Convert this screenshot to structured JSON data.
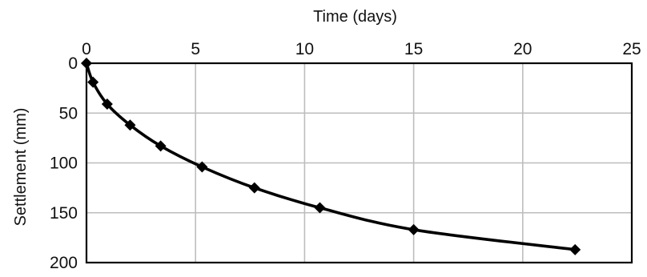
{
  "chart_data": {
    "type": "line",
    "xlabel": "Time (days)",
    "ylabel": "Settlement (mm)",
    "x_axis_position": "top",
    "y_axis_inverted": true,
    "xlim": [
      0,
      25
    ],
    "ylim": [
      0,
      200
    ],
    "x_ticks": [
      0,
      5,
      10,
      15,
      20,
      25
    ],
    "y_ticks": [
      0,
      50,
      100,
      150,
      200
    ],
    "x_tick_labels": [
      "0",
      "5",
      "10",
      "15",
      "20",
      "25"
    ],
    "y_tick_labels": [
      "0",
      "50",
      "100",
      "150",
      "200"
    ],
    "grid": true,
    "series": [
      {
        "marker": "diamond",
        "color": "#000000",
        "points": [
          {
            "x": 0,
            "y": 0
          },
          {
            "x": 0.3,
            "y": 19
          },
          {
            "x": 0.95,
            "y": 41
          },
          {
            "x": 2.0,
            "y": 62
          },
          {
            "x": 3.4,
            "y": 83
          },
          {
            "x": 5.3,
            "y": 104
          },
          {
            "x": 7.7,
            "y": 125
          },
          {
            "x": 10.7,
            "y": 145
          },
          {
            "x": 15.0,
            "y": 167
          },
          {
            "x": 22.4,
            "y": 187
          }
        ]
      }
    ]
  }
}
